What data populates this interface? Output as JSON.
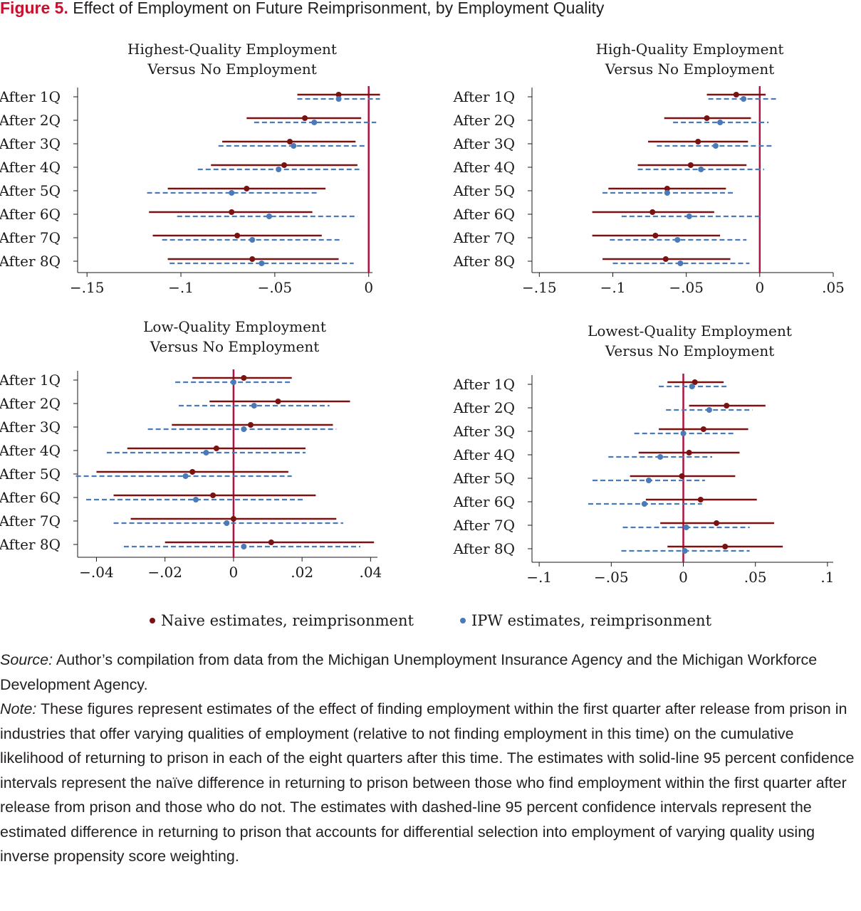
{
  "figure": {
    "label": "Figure 5.",
    "title": "Effect of Employment on Future Reimprisonment, by Employment Quality"
  },
  "colors": {
    "naive": "#7a1212",
    "ipw": "#4a7ab8",
    "zero_line": "#b0133d"
  },
  "legend": {
    "naive": "Naive estimates, reimprisonment",
    "ipw": "IPW estimates, reimprisonment"
  },
  "chart_data": [
    {
      "type": "scatter",
      "title_lines": [
        "Highest-Quality Employment",
        "Versus No Employment"
      ],
      "categories": [
        "After 1Q",
        "After 2Q",
        "After 3Q",
        "After 4Q",
        "After 5Q",
        "After 6Q",
        "After 7Q",
        "After 8Q"
      ],
      "xlim": [
        -0.155,
        0.002
      ],
      "xticks": [
        -0.15,
        -0.1,
        -0.05,
        0
      ],
      "xtick_labels": [
        "−.15",
        "−.1",
        "−.05",
        "0"
      ],
      "series": [
        {
          "name": "Naive estimates, reimprisonment",
          "estimates": [
            -0.016,
            -0.034,
            -0.042,
            -0.045,
            -0.065,
            -0.073,
            -0.07,
            -0.062
          ],
          "ci_low": [
            -0.038,
            -0.065,
            -0.078,
            -0.084,
            -0.107,
            -0.117,
            -0.115,
            -0.107
          ],
          "ci_high": [
            0.006,
            -0.004,
            -0.007,
            -0.006,
            -0.023,
            -0.03,
            -0.025,
            -0.016
          ]
        },
        {
          "name": "IPW estimates, reimprisonment",
          "estimates": [
            -0.016,
            -0.029,
            -0.04,
            -0.048,
            -0.073,
            -0.053,
            -0.062,
            -0.057
          ],
          "ci_low": [
            -0.038,
            -0.061,
            -0.08,
            -0.091,
            -0.118,
            -0.102,
            -0.11,
            -0.106
          ],
          "ci_high": [
            0.006,
            0.004,
            -0.001,
            -0.005,
            -0.027,
            -0.006,
            -0.014,
            -0.008
          ]
        }
      ]
    },
    {
      "type": "scatter",
      "title_lines": [
        "High-Quality Employment",
        "Versus No Employment"
      ],
      "categories": [
        "After 1Q",
        "After 2Q",
        "After 3Q",
        "After 4Q",
        "After 5Q",
        "After 6Q",
        "After 7Q",
        "After 8Q"
      ],
      "xlim": [
        -0.155,
        0.05
      ],
      "xticks": [
        -0.15,
        -0.1,
        -0.05,
        0,
        0.05
      ],
      "xtick_labels": [
        "−.15",
        "−.1",
        "−.05",
        "0",
        ".05"
      ],
      "series": [
        {
          "name": "Naive estimates, reimprisonment",
          "estimates": [
            -0.016,
            -0.036,
            -0.042,
            -0.047,
            -0.063,
            -0.073,
            -0.071,
            -0.064
          ],
          "ci_low": [
            -0.036,
            -0.065,
            -0.076,
            -0.083,
            -0.103,
            -0.114,
            -0.114,
            -0.107
          ],
          "ci_high": [
            0.004,
            -0.006,
            -0.008,
            -0.009,
            -0.023,
            -0.031,
            -0.027,
            -0.02
          ]
        },
        {
          "name": "IPW estimates, reimprisonment",
          "estimates": [
            -0.011,
            -0.027,
            -0.03,
            -0.04,
            -0.063,
            -0.048,
            -0.056,
            -0.054
          ],
          "ci_low": [
            -0.035,
            -0.059,
            -0.07,
            -0.083,
            -0.107,
            -0.094,
            -0.102,
            -0.1
          ],
          "ci_high": [
            0.013,
            0.006,
            0.01,
            0.003,
            -0.018,
            0.0,
            -0.009,
            -0.007
          ]
        }
      ]
    },
    {
      "type": "scatter",
      "title_lines": [
        "Low-Quality Employment",
        "Versus No Employment"
      ],
      "categories": [
        "After 1Q",
        "After 2Q",
        "After 3Q",
        "After 4Q",
        "After 5Q",
        "After 6Q",
        "After 7Q",
        "After 8Q"
      ],
      "xlim": [
        -0.0455,
        0.042
      ],
      "xticks": [
        -0.04,
        -0.02,
        0,
        0.02,
        0.04
      ],
      "xtick_labels": [
        "−.04",
        "−.02",
        "0",
        ".02",
        ".04"
      ],
      "series": [
        {
          "name": "Naive estimates, reimprisonment",
          "estimates": [
            0.003,
            0.013,
            0.005,
            -0.005,
            -0.012,
            -0.006,
            0.0,
            0.011
          ],
          "ci_low": [
            -0.012,
            -0.007,
            -0.018,
            -0.031,
            -0.04,
            -0.035,
            -0.03,
            -0.02
          ],
          "ci_high": [
            0.017,
            0.034,
            0.029,
            0.021,
            0.016,
            0.024,
            0.03,
            0.041
          ]
        },
        {
          "name": "IPW estimates, reimprisonment",
          "estimates": [
            0.0,
            0.006,
            0.003,
            -0.008,
            -0.014,
            -0.011,
            -0.002,
            0.003
          ],
          "ci_low": [
            -0.017,
            -0.016,
            -0.025,
            -0.037,
            -0.046,
            -0.043,
            -0.035,
            -0.032
          ],
          "ci_high": [
            0.017,
            0.028,
            0.03,
            0.021,
            0.017,
            0.021,
            0.032,
            0.037
          ]
        }
      ]
    },
    {
      "type": "scatter",
      "title_lines": [
        "Lowest-Quality Employment",
        "Versus No Employment"
      ],
      "categories": [
        "After 1Q",
        "After 2Q",
        "After 3Q",
        "After 4Q",
        "After 5Q",
        "After 6Q",
        "After 7Q",
        "After 8Q"
      ],
      "xlim": [
        -0.105,
        0.104
      ],
      "xticks": [
        -0.1,
        -0.05,
        0,
        0.05,
        0.1
      ],
      "xtick_labels": [
        "−.1",
        "−.05",
        "0",
        ".05",
        ".1"
      ],
      "series": [
        {
          "name": "Naive estimates, reimprisonment",
          "estimates": [
            0.008,
            0.03,
            0.014,
            0.004,
            -0.001,
            0.012,
            0.023,
            0.029
          ],
          "ci_low": [
            -0.011,
            0.004,
            -0.017,
            -0.031,
            -0.037,
            -0.026,
            -0.016,
            -0.011
          ],
          "ci_high": [
            0.028,
            0.057,
            0.045,
            0.039,
            0.036,
            0.051,
            0.063,
            0.069
          ]
        },
        {
          "name": "IPW estimates, reimprisonment",
          "estimates": [
            0.006,
            0.018,
            0.0,
            -0.016,
            -0.024,
            -0.027,
            0.002,
            0.001
          ],
          "ci_low": [
            -0.017,
            -0.012,
            -0.034,
            -0.052,
            -0.063,
            -0.066,
            -0.042,
            -0.043
          ],
          "ci_high": [
            0.03,
            0.048,
            0.035,
            0.02,
            0.015,
            0.013,
            0.046,
            0.046
          ]
        }
      ]
    }
  ],
  "notes": {
    "source_label": "Source:",
    "source_text": " Author’s compilation from data from the Michigan Unemployment Insurance Agency and the Michigan Workforce Development Agency.",
    "note_label": "Note:",
    "note_text": " These figures represent estimates of the effect of finding employment within the first quarter after release from prison in industries that offer varying qualities of employment (relative to not finding employment in this time) on the cumulative likelihood of returning to prison in each of the eight quarters after this time. The estimates with solid-line 95 percent confidence intervals represent the naïve difference in returning to prison between those who find employment within the first quarter after release from prison and those who do not. The estimates with dashed-line 95 percent confidence intervals represent the estimated difference in returning to prison that accounts for differential selection into employment of varying quality using inverse propensity score weighting."
  }
}
